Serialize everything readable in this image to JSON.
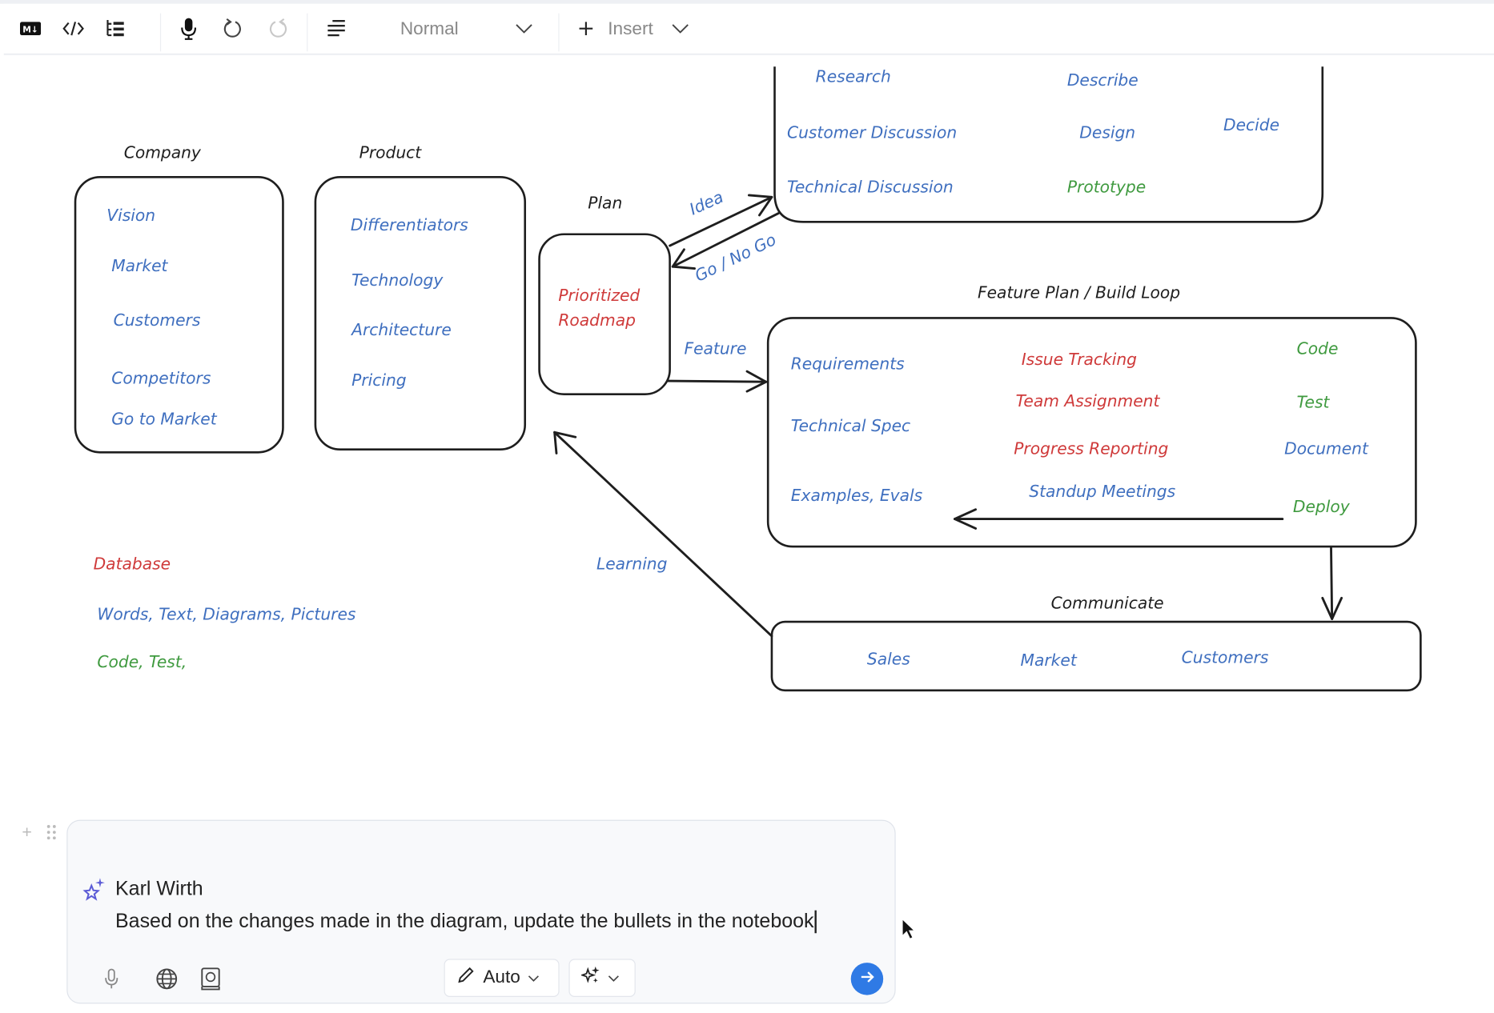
{
  "toolbar": {
    "icons": [
      "markdown-icon",
      "code-icon",
      "outline-icon",
      "microphone-icon",
      "undo-icon",
      "redo-icon",
      "align-icon"
    ],
    "style_select": "Normal",
    "insert_label": "Insert"
  },
  "diagram": {
    "company": {
      "title": "Company",
      "items": [
        "Vision",
        "Market",
        "Customers",
        "Competitors",
        "Go to Market"
      ]
    },
    "product": {
      "title": "Product",
      "items": [
        "Differentiators",
        "Technology",
        "Architecture",
        "Pricing"
      ]
    },
    "plan": {
      "title": "Plan",
      "items": [
        "Prioritized",
        "Roadmap"
      ]
    },
    "research": {
      "items": [
        "Research",
        "Describe",
        "Customer Discussion",
        "Design",
        "Decide",
        "Technical Discussion",
        "Prototype"
      ]
    },
    "arrows": {
      "idea": "Idea",
      "go_no_go": "Go / No Go",
      "feature": "Feature",
      "learning": "Learning"
    },
    "build_loop": {
      "title": "Feature Plan / Build Loop",
      "items": [
        "Requirements",
        "Technical Spec",
        "Examples, Evals",
        "Issue Tracking",
        "Team Assignment",
        "Progress Reporting",
        "Standup Meetings",
        "Code",
        "Test",
        "Document",
        "Deploy"
      ]
    },
    "communicate": {
      "title": "Communicate",
      "items": [
        "Sales",
        "Market",
        "Customers"
      ]
    },
    "legend": {
      "database": "Database",
      "words": "Words, Text, Diagrams, Pictures",
      "code": "Code, Test,"
    },
    "colors": {
      "blue": "#3f6fbf",
      "red": "#cf3a3a",
      "green": "#3f9a3f",
      "ink": "#1e1e1e"
    }
  },
  "chat": {
    "author": "Karl Wirth",
    "message": "Based on the changes made in the diagram, update the bullets in the notebook",
    "mode_label": "Auto",
    "send_color": "#2f7ae5"
  }
}
